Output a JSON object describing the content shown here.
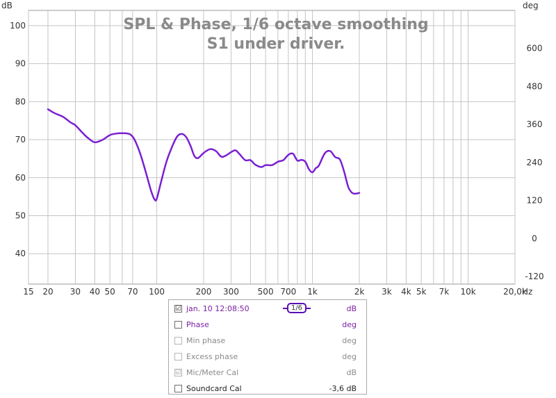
{
  "chart_data": {
    "type": "line",
    "title": "SPL & Phase, 1/6 octave smoothing",
    "subtitle": "S1 under driver.",
    "left_unit": "dB",
    "right_unit": "deg",
    "x_unit": "Hz",
    "x_scale": "log",
    "xlim": [
      15,
      20000
    ],
    "ylim": [
      32,
      104
    ],
    "y2lim": [
      -144,
      720
    ],
    "grid": true,
    "x_ticks": [
      15,
      20,
      30,
      40,
      50,
      60,
      70,
      100,
      200,
      300,
      400,
      500,
      600,
      700,
      800,
      900,
      1000,
      2000,
      3000,
      4000,
      5000,
      6000,
      7000,
      8000,
      9000,
      10000,
      20000
    ],
    "x_tick_labels": [
      {
        "v": 15,
        "t": "15"
      },
      {
        "v": 20,
        "t": "20"
      },
      {
        "v": 30,
        "t": "30"
      },
      {
        "v": 40,
        "t": "40"
      },
      {
        "v": 50,
        "t": "50"
      },
      {
        "v": 70,
        "t": "70"
      },
      {
        "v": 100,
        "t": "100"
      },
      {
        "v": 200,
        "t": "200"
      },
      {
        "v": 300,
        "t": "300"
      },
      {
        "v": 500,
        "t": "500"
      },
      {
        "v": 700,
        "t": "700"
      },
      {
        "v": 1000,
        "t": "1k"
      },
      {
        "v": 2000,
        "t": "2k"
      },
      {
        "v": 3000,
        "t": "3k"
      },
      {
        "v": 4000,
        "t": "4k"
      },
      {
        "v": 5000,
        "t": "5k"
      },
      {
        "v": 7000,
        "t": "7k"
      },
      {
        "v": 10000,
        "t": "10k"
      },
      {
        "v": 20000,
        "t": "20,0k"
      }
    ],
    "y_ticks": [
      40,
      50,
      60,
      70,
      80,
      90,
      100
    ],
    "y2_ticks": [
      -120,
      0,
      120,
      240,
      360,
      480,
      600
    ],
    "series": [
      {
        "name": "jan. 10 12:08:50",
        "color": "#7a1fd2",
        "x": [
          20,
          22,
          25,
          28,
          30,
          33,
          36,
          40,
          45,
          50,
          55,
          60,
          65,
          68,
          72,
          78,
          85,
          92,
          97,
          100,
          106,
          115,
          125,
          135,
          145,
          155,
          165,
          175,
          185,
          200,
          220,
          240,
          260,
          280,
          300,
          320,
          340,
          370,
          400,
          430,
          470,
          500,
          550,
          600,
          650,
          700,
          750,
          800,
          850,
          900,
          950,
          1000,
          1050,
          1100,
          1200,
          1300,
          1400,
          1500,
          1600,
          1700,
          1800,
          1900,
          2000
        ],
        "y": [
          78,
          77,
          76,
          74.5,
          73.8,
          72,
          70.5,
          69.3,
          70,
          71.2,
          71.6,
          71.7,
          71.6,
          71.3,
          70,
          66.5,
          61.5,
          56.5,
          54.2,
          54.5,
          58.5,
          64,
          68,
          70.8,
          71.5,
          70.6,
          68.3,
          65.6,
          65.2,
          66.5,
          67.5,
          67,
          65.5,
          65.9,
          66.7,
          67.2,
          66.2,
          64.6,
          64.6,
          63.4,
          62.8,
          63.3,
          63.3,
          64.2,
          64.6,
          66,
          66.3,
          64.5,
          64.7,
          64.2,
          62.2,
          61.4,
          62.5,
          63.2,
          66.4,
          67,
          65.4,
          64.8,
          61.5,
          57.5,
          56,
          55.8,
          56
        ]
      }
    ]
  },
  "legend": {
    "rows": [
      {
        "checked": "☑",
        "label": "jan. 10 12:08:50",
        "smoothing": "1/6",
        "unit": "dB"
      },
      {
        "checked": "",
        "label": "Phase",
        "unit": "deg"
      },
      {
        "checked": "",
        "label": "Min phase",
        "unit": "deg"
      },
      {
        "checked": "",
        "label": "Excess phase",
        "unit": "deg"
      },
      {
        "checked": "☑",
        "label": "Mic/Meter Cal",
        "unit": "dB"
      },
      {
        "checked": "",
        "label": "Soundcard Cal",
        "unit": "-3,6 dB"
      }
    ]
  }
}
